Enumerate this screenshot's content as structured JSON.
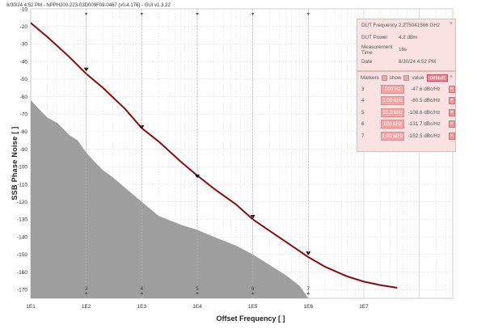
{
  "header_text": "8/30/24 4:52 PM - NPPH200-223-03D009F09-0467 (v0.4.176) - GUI v1.3.22",
  "chart_data": {
    "type": "area",
    "ylabel": "SSB Phase Noise [ ]",
    "xlabel": "Offset Frequency [ ]",
    "x_scale": "log",
    "xlim": [
      10,
      400000000
    ],
    "ylim": [
      -175,
      -10
    ],
    "y_ticks": [
      -10,
      -20,
      -30,
      -40,
      -50,
      -60,
      -70,
      -80,
      -90,
      -100,
      -110,
      -120,
      -130,
      -140,
      -150,
      -160,
      -170
    ],
    "x_tick_labels": [
      "1E1",
      "1E2",
      "1E3",
      "1E4",
      "1E5",
      "1E6",
      "1E7"
    ],
    "x_tick_values": [
      10,
      100,
      1000,
      10000,
      100000,
      1000000,
      10000000
    ],
    "grid": true,
    "series": [
      {
        "color": "#8b0a0a",
        "kind": "line",
        "x": [
          10,
          20,
          50,
          100,
          200,
          500,
          1000,
          2000,
          5000,
          10000,
          20000,
          50000,
          100000,
          200000,
          500000,
          1000000,
          2000000,
          5000000,
          10000000,
          20000000,
          40000000
        ],
        "y": [
          -18,
          -26,
          -37.5,
          -47,
          -55,
          -67,
          -78,
          -85.5,
          -97,
          -105,
          -112.5,
          -121.5,
          -130,
          -136.5,
          -145,
          -151.5,
          -157,
          -162.5,
          -165.5,
          -167.5,
          -169
        ]
      },
      {
        "color": "#9e9e9e",
        "kind": "area",
        "x": [
          10,
          15,
          20,
          30,
          50,
          70,
          100,
          150,
          200,
          300,
          500,
          1000,
          2000,
          5000,
          10000,
          20000,
          50000,
          100000,
          200000,
          400000,
          700000,
          1000000
        ],
        "y": [
          -62,
          -68,
          -72,
          -75,
          -82,
          -85,
          -92,
          -98,
          -102,
          -106,
          -112,
          -120,
          -128,
          -133,
          -136,
          -140,
          -145,
          -150,
          -156,
          -162,
          -168,
          -175
        ]
      }
    ],
    "markers": [
      {
        "id": "3",
        "x": 100,
        "y": -47.6
      },
      {
        "id": "4",
        "x": 1000,
        "y": -80.5
      },
      {
        "id": "5",
        "x": 10000,
        "y": -108.6
      },
      {
        "id": "6",
        "x": 100000,
        "y": -131.7
      },
      {
        "id": "7",
        "x": 1000000,
        "y": -152.5
      }
    ]
  },
  "info_panel": {
    "rows": [
      {
        "label": "DUT Frequency",
        "value": "2.275041566 GHz"
      },
      {
        "label": "DUT Power",
        "value": "4.2 dBm"
      },
      {
        "label": "Measurement Time",
        "value": "16s"
      },
      {
        "label": "Date",
        "value": "8/30/24 4:52 PM"
      }
    ],
    "close": "×"
  },
  "marker_panel": {
    "title": "Markers",
    "show_label": "show",
    "value_label": "value",
    "default_label": "default",
    "close": "×",
    "rows": [
      {
        "id": "3",
        "freq": "100 Hz",
        "value": "-47.6 dBc/Hz"
      },
      {
        "id": "4",
        "freq": "1.00 kHz",
        "value": "-80.5 dBc/Hz"
      },
      {
        "id": "5",
        "freq": "10.0 kHz",
        "value": "-108.6 dBc/Hz"
      },
      {
        "id": "6",
        "freq": "100 kHz",
        "value": "-131.7 dBc/Hz"
      },
      {
        "id": "7",
        "freq": "1.00 MHz",
        "value": "-152.5 dBc/Hz"
      }
    ]
  }
}
